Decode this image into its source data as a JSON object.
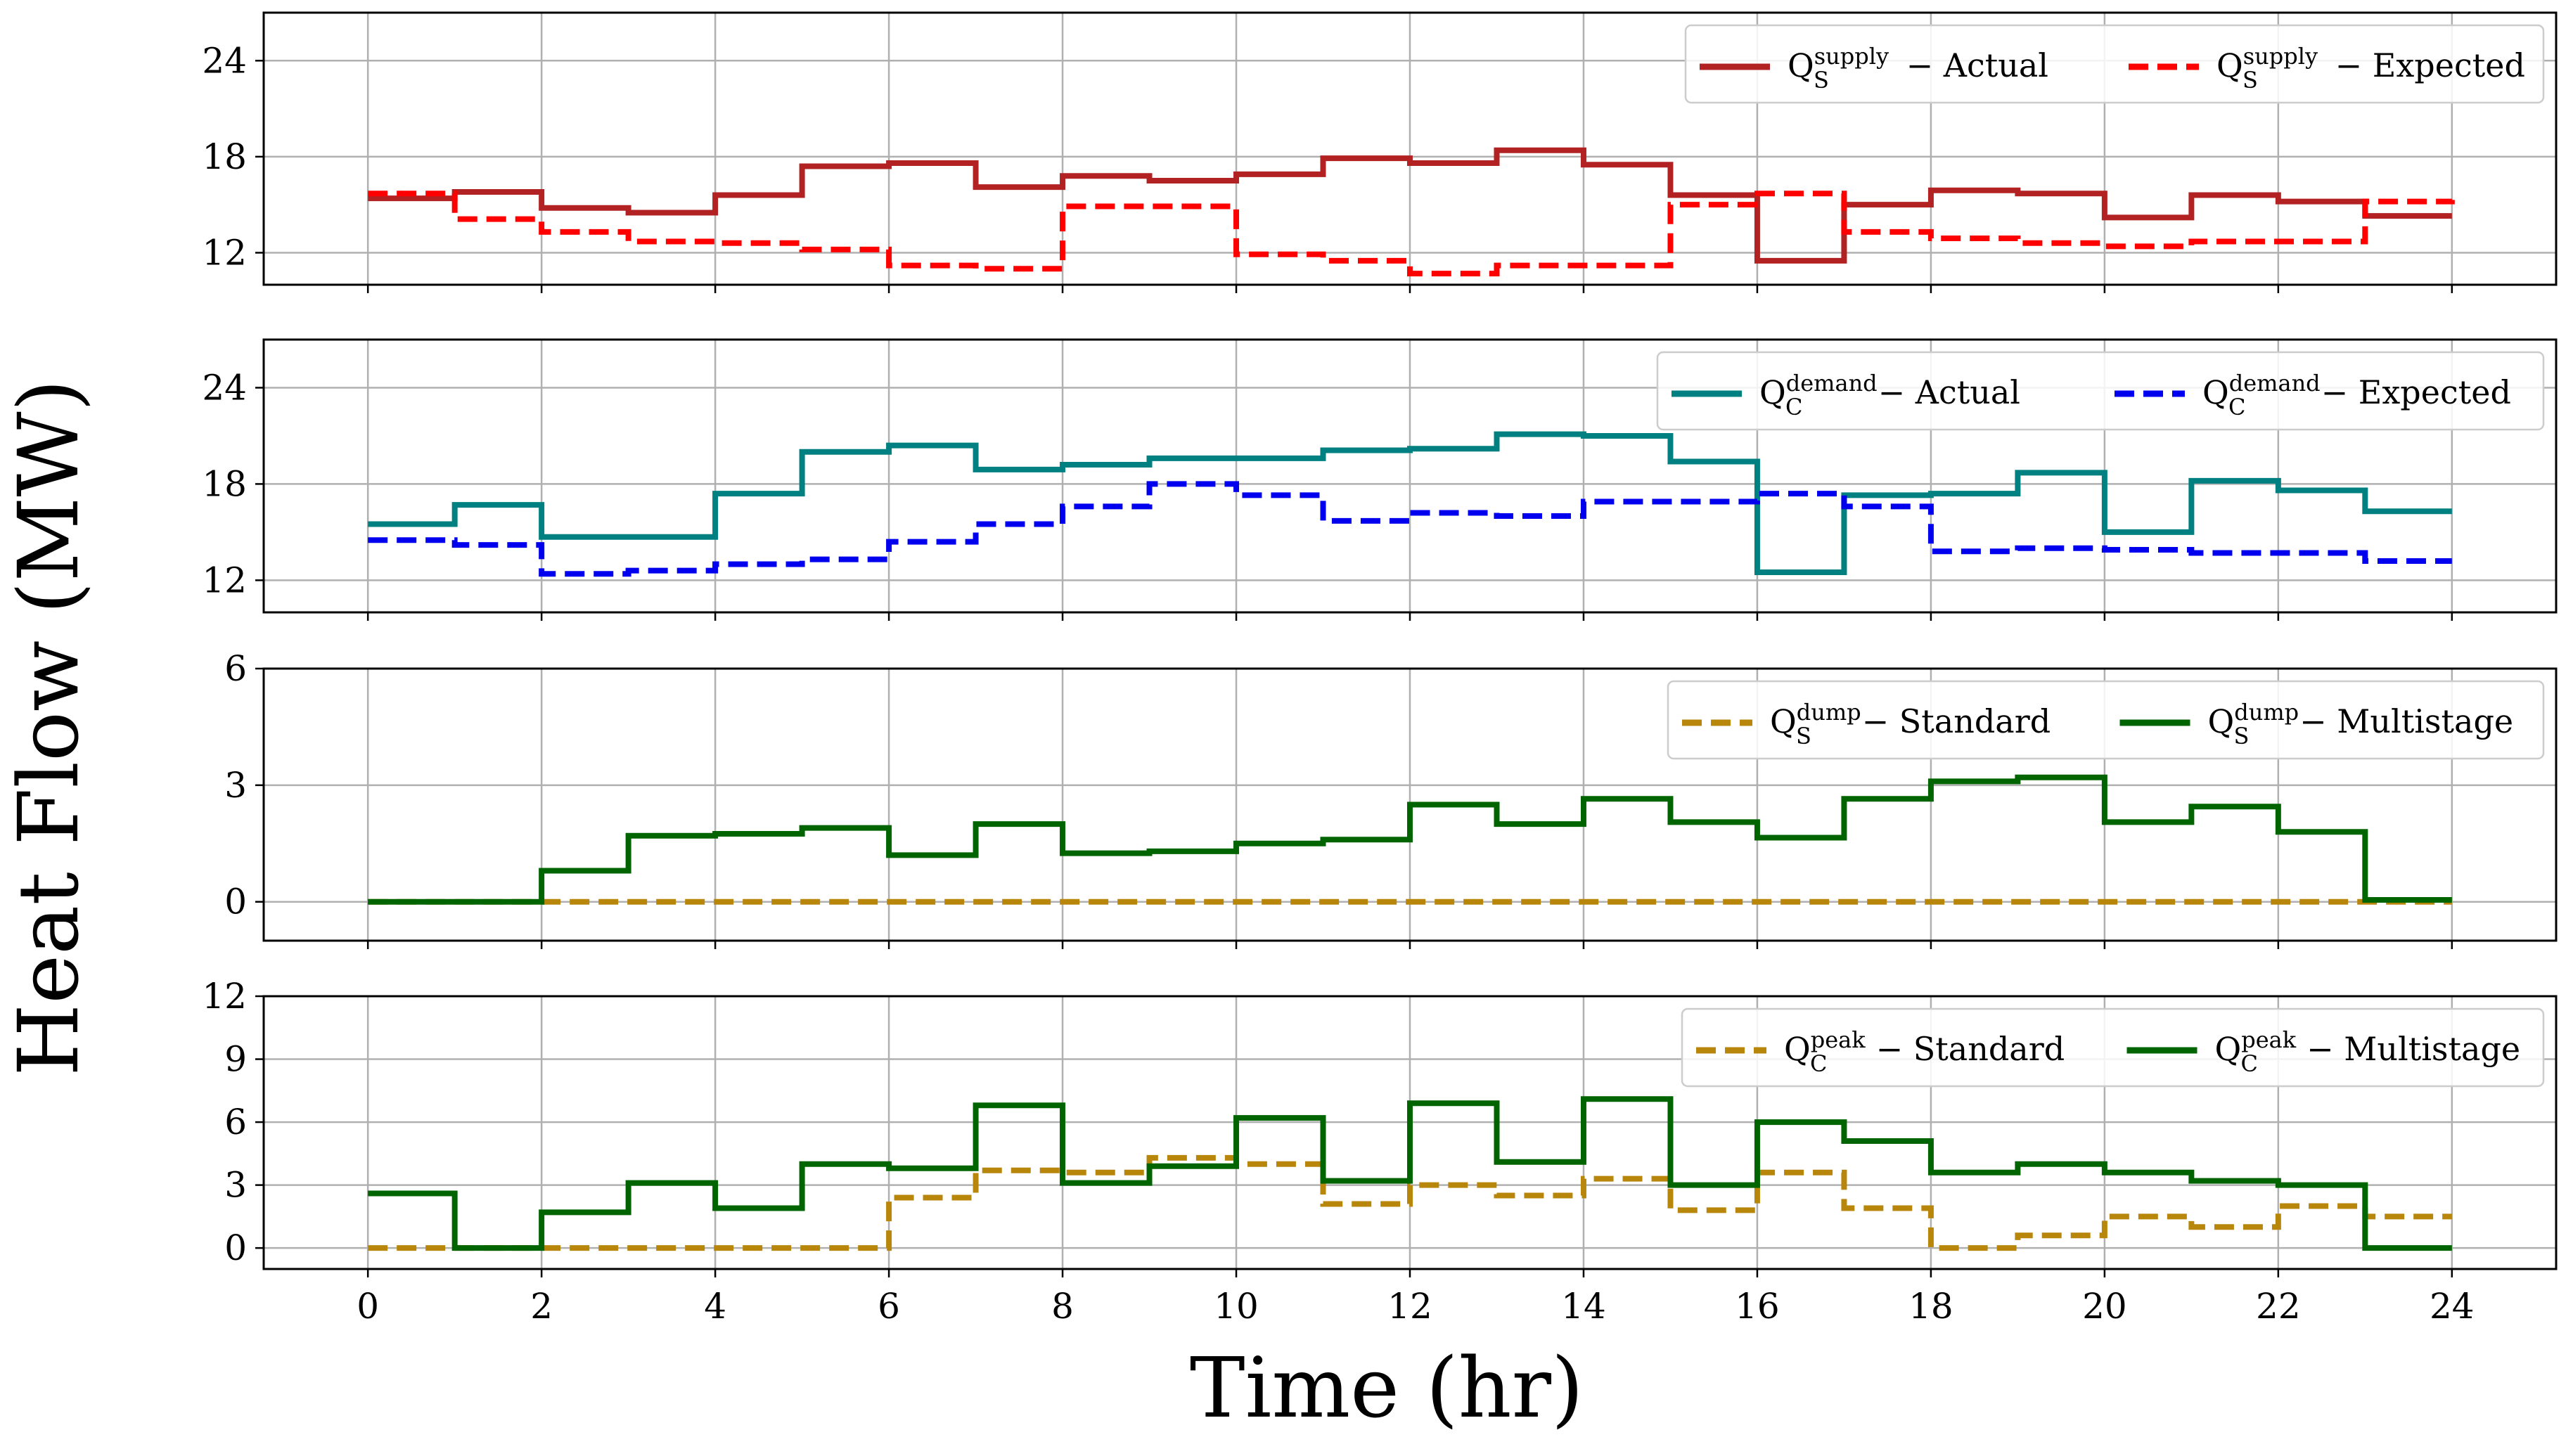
{
  "chart_data": {
    "type": "line",
    "step": "post",
    "xlabel": "Time (hr)",
    "ylabel": "Heat Flow (MW)",
    "x_ticks": [
      "0",
      "2",
      "4",
      "6",
      "8",
      "10",
      "12",
      "14",
      "16",
      "18",
      "20",
      "22",
      "24"
    ],
    "x": [
      0,
      1,
      2,
      3,
      4,
      5,
      6,
      7,
      8,
      9,
      10,
      11,
      12,
      13,
      14,
      15,
      16,
      17,
      18,
      19,
      20,
      21,
      22,
      23,
      24
    ],
    "panels": [
      {
        "ylim": [
          10,
          27
        ],
        "yticks": [
          12,
          18,
          24
        ],
        "legend": "top-right",
        "series": [
          {
            "name": "Actual",
            "sym_base": "Q",
            "sym_sup": "supply",
            "sym_sub": "S",
            "suffix": " − Actual",
            "color": "#b22222",
            "dash": false,
            "values": [
              15.4,
              15.8,
              14.8,
              14.5,
              15.6,
              17.4,
              17.6,
              16.1,
              16.8,
              16.5,
              16.9,
              17.9,
              17.6,
              18.4,
              17.5,
              15.6,
              11.5,
              15.0,
              15.9,
              15.7,
              14.2,
              15.6,
              15.2,
              14.3,
              14.3
            ]
          },
          {
            "name": "Expected",
            "sym_base": "Q",
            "sym_sup": "supply",
            "sym_sub": "S",
            "suffix": " − Expected",
            "color": "#ff0000",
            "dash": true,
            "values": [
              15.7,
              14.1,
              13.3,
              12.7,
              12.6,
              12.2,
              11.2,
              11.0,
              14.9,
              14.9,
              11.9,
              11.5,
              10.7,
              11.2,
              11.2,
              15.0,
              15.7,
              13.3,
              12.9,
              12.6,
              12.4,
              12.7,
              12.7,
              15.2,
              15.3
            ]
          }
        ]
      },
      {
        "ylim": [
          10,
          27
        ],
        "yticks": [
          12,
          18,
          24
        ],
        "legend": "top-right",
        "series": [
          {
            "name": "Actual",
            "sym_base": "Q",
            "sym_sup": "demand",
            "sym_sub": "C",
            "suffix": " − Actual",
            "color": "#008080",
            "dash": false,
            "values": [
              15.5,
              16.7,
              14.7,
              14.7,
              17.4,
              20.0,
              20.4,
              18.9,
              19.2,
              19.6,
              19.6,
              20.1,
              20.2,
              21.1,
              21.0,
              19.4,
              12.5,
              17.3,
              17.4,
              18.7,
              15.0,
              18.2,
              17.6,
              16.3,
              16.3
            ]
          },
          {
            "name": "Expected",
            "sym_base": "Q",
            "sym_sup": "demand",
            "sym_sub": "C",
            "suffix": " − Expected",
            "color": "#0000ee",
            "dash": true,
            "values": [
              14.5,
              14.2,
              12.4,
              12.6,
              13.0,
              13.3,
              14.4,
              15.5,
              16.6,
              18.0,
              17.3,
              15.7,
              16.2,
              16.0,
              16.9,
              16.9,
              17.4,
              16.6,
              13.8,
              14.0,
              13.9,
              13.7,
              13.7,
              13.2,
              13.2
            ]
          }
        ]
      },
      {
        "ylim": [
          -1,
          6
        ],
        "yticks": [
          0,
          3,
          6
        ],
        "legend": "top-right",
        "series": [
          {
            "name": "Standard",
            "sym_base": "Q",
            "sym_sup": "dump",
            "sym_sub": "S",
            "suffix": " − Standard",
            "color": "#b8860b",
            "dash": true,
            "values": [
              0,
              0,
              0,
              0,
              0,
              0,
              0,
              0,
              0,
              0,
              0,
              0,
              0,
              0,
              0,
              0,
              0,
              0,
              0,
              0,
              0,
              0,
              0,
              0,
              0
            ]
          },
          {
            "name": "Multistage",
            "sym_base": "Q",
            "sym_sup": "dump",
            "sym_sub": "S",
            "suffix": " − Multistage",
            "color": "#006400",
            "dash": false,
            "values": [
              0,
              0,
              0.8,
              1.7,
              1.75,
              1.9,
              1.2,
              2.0,
              1.25,
              1.3,
              1.5,
              1.6,
              2.5,
              2.0,
              2.65,
              2.05,
              1.65,
              2.65,
              3.1,
              3.2,
              2.05,
              2.45,
              1.8,
              0.05,
              0.05
            ]
          }
        ]
      },
      {
        "ylim": [
          -1,
          12
        ],
        "yticks": [
          0,
          3,
          6,
          9,
          12
        ],
        "legend": "top-right",
        "series": [
          {
            "name": "Standard",
            "sym_base": "Q",
            "sym_sup": "peak",
            "sym_sub": "C",
            "suffix": " − Standard",
            "color": "#b8860b",
            "dash": true,
            "values": [
              0,
              0,
              0,
              0,
              0,
              0,
              2.4,
              3.7,
              3.6,
              4.3,
              4.0,
              2.1,
              3.0,
              2.5,
              3.3,
              1.8,
              3.6,
              1.9,
              0,
              0.6,
              1.5,
              1.0,
              2.0,
              1.5,
              1.5
            ]
          },
          {
            "name": "Multistage",
            "sym_base": "Q",
            "sym_sup": "peak",
            "sym_sub": "C",
            "suffix": " − Multistage",
            "color": "#006400",
            "dash": false,
            "values": [
              2.6,
              0,
              1.7,
              3.1,
              1.9,
              4.0,
              3.8,
              6.8,
              3.1,
              3.9,
              6.2,
              3.2,
              6.9,
              4.1,
              7.1,
              3.0,
              6.0,
              5.1,
              3.6,
              4.0,
              3.6,
              3.2,
              3.0,
              0,
              0
            ]
          }
        ]
      }
    ]
  }
}
